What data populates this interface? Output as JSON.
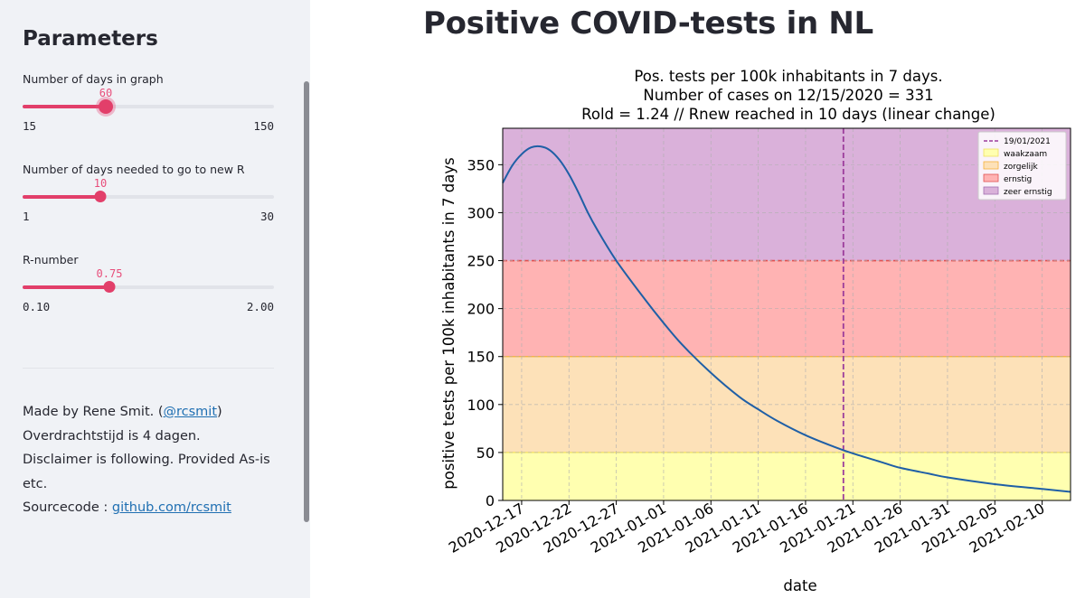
{
  "sidebar": {
    "title": "Parameters",
    "sliders": [
      {
        "label": "Number of days in graph",
        "value": "60",
        "min": "15",
        "max": "150",
        "fraction": 0.3333
      },
      {
        "label": "Number of days needed to go to new R",
        "value": "10",
        "min": "1",
        "max": "30",
        "fraction": 0.3103
      },
      {
        "label": "R-number",
        "value": "0.75",
        "min": "0.10",
        "max": "2.00",
        "fraction": 0.3421
      }
    ],
    "about": {
      "made_by": "Made by Rene Smit. (",
      "handle": "@rcsmit",
      "made_by_end": ")",
      "transfer": "Overdrachtstijd is 4 dagen.",
      "disclaimer": "Disclaimer is following. Provided As-is etc.",
      "source_label": "Sourcecode : ",
      "source_link": "github.com/rcsmit"
    }
  },
  "main": {
    "title": "Positive COVID-tests in NL"
  },
  "chart_data": {
    "type": "line",
    "title_lines": [
      "Pos. tests per 100k inhabitants in 7 days.",
      "Number of cases on 12/15/2020 = 331",
      "Rold = 1.24 // Rnew reached in 10 days (linear change)"
    ],
    "xlabel": "date",
    "ylabel": "positive tests per 100k inhabitants in 7 days",
    "x_tick_labels": [
      "2020-12-17",
      "2020-12-22",
      "2020-12-27",
      "2021-01-01",
      "2021-01-06",
      "2021-01-11",
      "2021-01-16",
      "2021-01-21",
      "2021-01-26",
      "2021-01-31",
      "2021-02-05",
      "2021-02-10"
    ],
    "y_ticks": [
      0,
      50,
      100,
      150,
      200,
      250,
      300,
      350
    ],
    "ylim": [
      0,
      388
    ],
    "xlim": [
      "2020-12-15",
      "2021-02-13"
    ],
    "series": [
      {
        "color": "#1f5fa6",
        "x": [
          "2020-12-15",
          "2020-12-16",
          "2020-12-17",
          "2020-12-18",
          "2020-12-19",
          "2020-12-20",
          "2020-12-21",
          "2020-12-22",
          "2020-12-23",
          "2020-12-24",
          "2020-12-25",
          "2020-12-27",
          "2020-12-30",
          "2021-01-01",
          "2021-01-03",
          "2021-01-06",
          "2021-01-09",
          "2021-01-11",
          "2021-01-13",
          "2021-01-16",
          "2021-01-19",
          "2021-01-21",
          "2021-01-24",
          "2021-01-26",
          "2021-01-29",
          "2021-01-31",
          "2021-02-05",
          "2021-02-10",
          "2021-02-13"
        ],
        "values": [
          331,
          349,
          361,
          368,
          369,
          365,
          355,
          340,
          321,
          300,
          282,
          250,
          210,
          185,
          162,
          133,
          108,
          95,
          83,
          68,
          56,
          49,
          40,
          34,
          28,
          24,
          17,
          12,
          9
        ]
      }
    ],
    "vline": {
      "date": "2021-01-20",
      "label": "19/01/2021",
      "color": "#9b3c9b"
    },
    "bands": [
      {
        "label": "waakzaam",
        "from": 0,
        "to": 50,
        "color": "#ffffb0",
        "edge": "#f0e060"
      },
      {
        "label": "zorgelijk",
        "from": 50,
        "to": 150,
        "color": "#fde1b8",
        "edge": "#f5b13a"
      },
      {
        "label": "ernstig",
        "from": 150,
        "to": 250,
        "color": "#ffb3b3",
        "edge": "#e05050"
      },
      {
        "label": "zeer ernstig",
        "from": 250,
        "to": 388,
        "color": "#dab1da",
        "edge": "#a070b0"
      }
    ],
    "grid": true,
    "legend_position": "top-right"
  }
}
